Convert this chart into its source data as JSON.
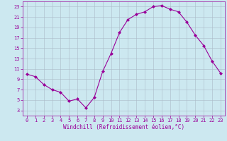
{
  "x": [
    0,
    1,
    2,
    3,
    4,
    5,
    6,
    7,
    8,
    9,
    10,
    11,
    12,
    13,
    14,
    15,
    16,
    17,
    18,
    19,
    20,
    21,
    22,
    23
  ],
  "y": [
    10,
    9.5,
    8,
    7,
    6.5,
    4.8,
    5.2,
    3.5,
    5.5,
    10.5,
    14,
    18,
    20.5,
    21.5,
    22,
    23,
    23.2,
    22.5,
    22,
    20,
    17.5,
    15.5,
    12.5,
    10.2
  ],
  "line_color": "#990099",
  "marker": "D",
  "marker_size": 2,
  "bg_color": "#cce8f0",
  "grid_color": "#aabbc8",
  "xlabel": "Windchill (Refroidissement éolien,°C)",
  "xlabel_color": "#990099",
  "xticks": [
    0,
    1,
    2,
    3,
    4,
    5,
    6,
    7,
    8,
    9,
    10,
    11,
    12,
    13,
    14,
    15,
    16,
    17,
    18,
    19,
    20,
    21,
    22,
    23
  ],
  "yticks": [
    3,
    5,
    7,
    9,
    11,
    13,
    15,
    17,
    19,
    21,
    23
  ],
  "xlim": [
    -0.5,
    23.5
  ],
  "ylim": [
    2,
    24
  ],
  "tick_color": "#990099",
  "tick_fontsize": 5.0,
  "xlabel_fontsize": 5.5,
  "linewidth": 0.8
}
